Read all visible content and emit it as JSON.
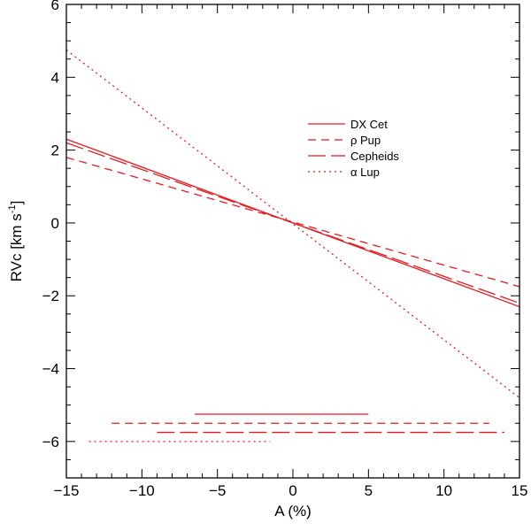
{
  "chart_data": {
    "type": "line",
    "title": "",
    "xlabel": "A (%)",
    "ylabel_main": "RVc [km s",
    "ylabel_exp": "-1",
    "ylabel_close": "]",
    "xlim": [
      -15,
      15
    ],
    "ylim": [
      -7,
      6
    ],
    "xticks": [
      -15,
      -10,
      -5,
      0,
      5,
      10,
      15
    ],
    "xtick_labels": [
      "−15",
      "−10",
      "−5",
      "0",
      "5",
      "10",
      "15"
    ],
    "yticks": [
      -6,
      -4,
      -2,
      0,
      2,
      4,
      6
    ],
    "ytick_labels": [
      "−6",
      "−4",
      "−2",
      "0",
      "2",
      "4",
      "6"
    ],
    "color": "#e8191e",
    "legend_position": "upper-right",
    "series": [
      {
        "name": "DX Cet",
        "dash": "solid",
        "x": [
          -15,
          15
        ],
        "y": [
          2.3,
          -2.3
        ]
      },
      {
        "name": "ρ Pup",
        "dash": "dashed",
        "x": [
          -15,
          15
        ],
        "y": [
          1.8,
          -1.75
        ]
      },
      {
        "name": "Cepheids",
        "dash": "longdash",
        "x": [
          -15,
          15
        ],
        "y": [
          2.2,
          -2.2
        ]
      },
      {
        "name": "α Lup",
        "dash": "dotted",
        "x": [
          -15,
          15
        ],
        "y": [
          4.75,
          -4.8
        ]
      }
    ],
    "ranges": [
      {
        "name": "DX Cet",
        "dash": "solid",
        "x": [
          -6.5,
          5.0
        ],
        "y": -5.25
      },
      {
        "name": "ρ Pup",
        "dash": "dashed",
        "x": [
          -12.0,
          13.0
        ],
        "y": -5.5
      },
      {
        "name": "Cepheids",
        "dash": "longdash",
        "x": [
          -9.0,
          14.0
        ],
        "y": -5.75
      },
      {
        "name": "α Lup",
        "dash": "dotted",
        "x": [
          -13.5,
          -1.5
        ],
        "y": -6.0
      }
    ]
  }
}
